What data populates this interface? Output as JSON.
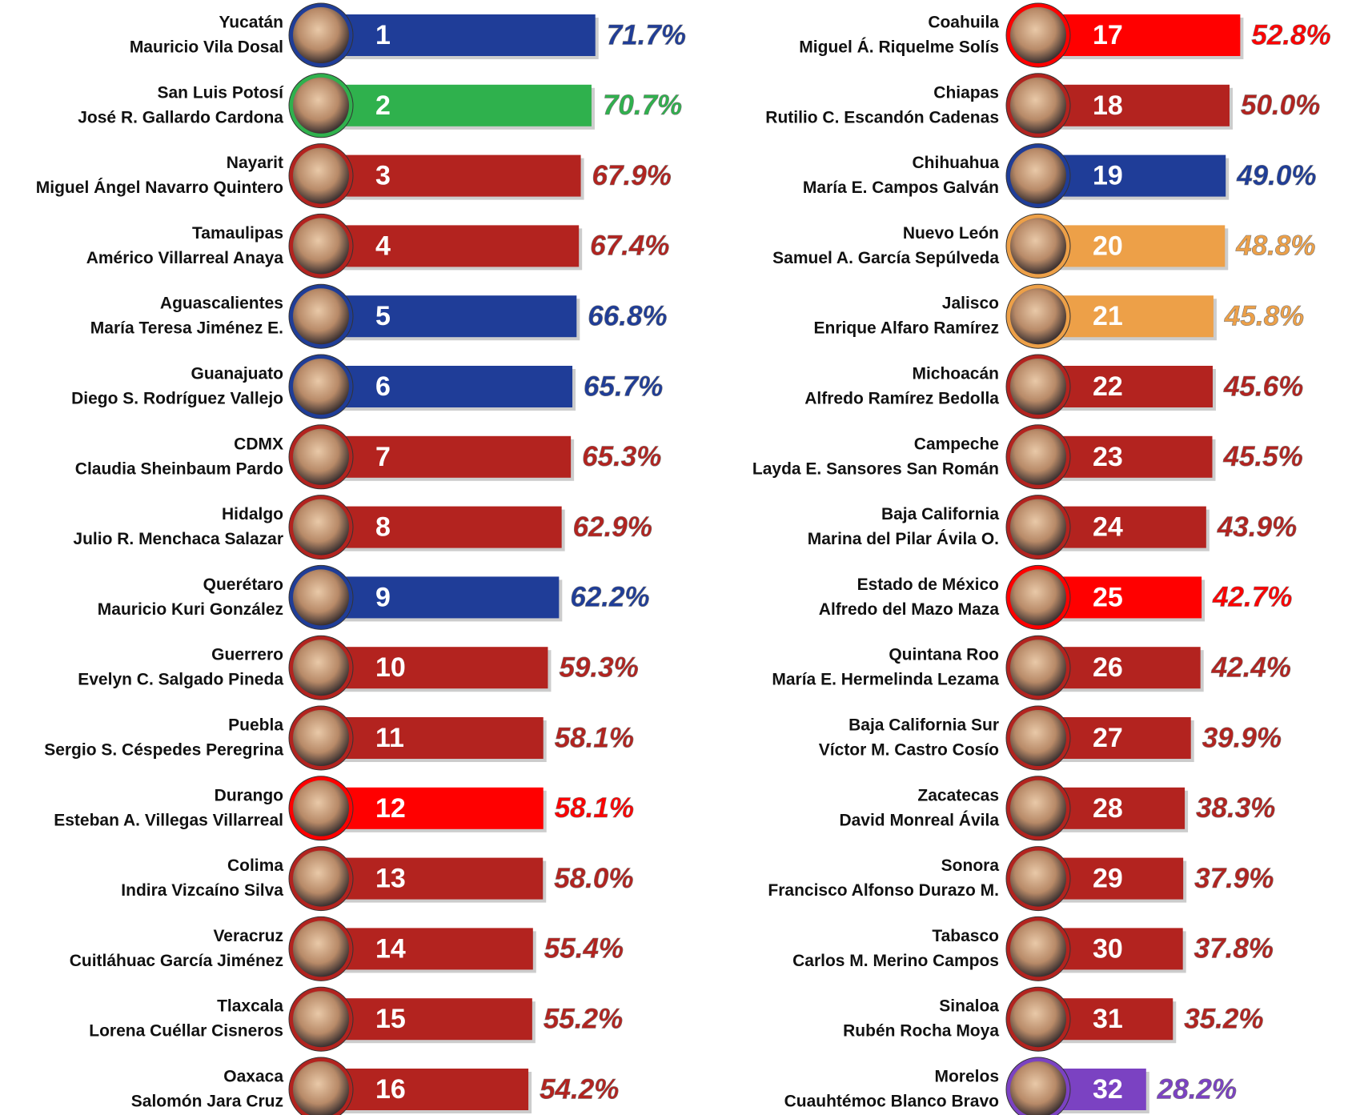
{
  "chart_data": {
    "type": "bar",
    "categories": [
      "Yucatán",
      "San Luis Potosí",
      "Nayarit",
      "Tamaulipas",
      "Aguascalientes",
      "Guanajuato",
      "CDMX",
      "Hidalgo",
      "Querétaro",
      "Guerrero",
      "Puebla",
      "Durango",
      "Colima",
      "Veracruz",
      "Tlaxcala",
      "Oaxaca",
      "Coahuila",
      "Chiapas",
      "Chihuahua",
      "Nuevo León",
      "Jalisco",
      "Michoacán",
      "Campeche",
      "Baja California",
      "Estado de México",
      "Quintana Roo",
      "Baja California Sur",
      "Zacatecas",
      "Sonora",
      "Tabasco",
      "Sinaloa",
      "Morelos"
    ],
    "governors": [
      "Mauricio Vila Dosal",
      "José R. Gallardo Cardona",
      "Miguel Ángel Navarro Quintero",
      "Américo Villarreal Anaya",
      "María Teresa Jiménez E.",
      "Diego S. Rodríguez Vallejo",
      "Claudia Sheinbaum Pardo",
      "Julio R. Menchaca Salazar",
      "Mauricio Kuri González",
      "Evelyn C. Salgado Pineda",
      "Sergio S. Céspedes Peregrina",
      "Esteban A. Villegas Villarreal",
      "Indira Vizcaíno Silva",
      "Cuitláhuac García Jiménez",
      "Lorena Cuéllar Cisneros",
      "Salomón Jara Cruz",
      "Miguel Á. Riquelme Solís",
      "Rutilio C. Escandón Cadenas",
      "María E. Campos Galván",
      "Samuel A. García Sepúlveda",
      "Enrique Alfaro Ramírez",
      "Alfredo Ramírez Bedolla",
      "Layda E. Sansores San Román",
      "Marina del Pilar Ávila O.",
      "Alfredo del Mazo Maza",
      "María E. Hermelinda Lezama",
      "Víctor M. Castro Cosío",
      "David Monreal Ávila",
      "Francisco Alfonso Durazo M.",
      "Carlos M. Merino Campos",
      "Rubén Rocha Moya",
      "Cuauhtémoc Blanco Bravo"
    ],
    "ranks": [
      1,
      2,
      3,
      4,
      5,
      6,
      7,
      8,
      9,
      10,
      11,
      12,
      13,
      14,
      15,
      16,
      17,
      18,
      19,
      20,
      21,
      22,
      23,
      24,
      25,
      26,
      27,
      28,
      29,
      30,
      31,
      32
    ],
    "values": [
      71.7,
      70.7,
      67.9,
      67.4,
      66.8,
      65.7,
      65.3,
      62.9,
      62.2,
      59.3,
      58.1,
      58.1,
      58.0,
      55.4,
      55.2,
      54.2,
      52.8,
      50.0,
      49.0,
      48.8,
      45.8,
      45.6,
      45.5,
      43.9,
      42.7,
      42.4,
      39.9,
      38.3,
      37.9,
      37.8,
      35.2,
      28.2
    ],
    "value_labels": [
      "71.7%",
      "70.7%",
      "67.9%",
      "67.4%",
      "66.8%",
      "65.7%",
      "65.3%",
      "62.9%",
      "62.2%",
      "59.3%",
      "58.1%",
      "58.1%",
      "58.0%",
      "55.4%",
      "55.2%",
      "54.2%",
      "52.8%",
      "50.0%",
      "49.0%",
      "48.8%",
      "45.8%",
      "45.6%",
      "45.5%",
      "43.9%",
      "42.7%",
      "42.4%",
      "39.9%",
      "38.3%",
      "37.9%",
      "37.8%",
      "35.2%",
      "28.2%"
    ],
    "colors": [
      "#1f3d98",
      "#2fb14d",
      "#b3231f",
      "#b3231f",
      "#1f3d98",
      "#1f3d98",
      "#b3231f",
      "#b3231f",
      "#1f3d98",
      "#b3231f",
      "#b3231f",
      "#ff0000",
      "#b3231f",
      "#b3231f",
      "#b3231f",
      "#b3231f",
      "#ff0000",
      "#b3231f",
      "#1f3d98",
      "#eda048",
      "#eda048",
      "#b3231f",
      "#b3231f",
      "#b3231f",
      "#ff0000",
      "#b3231f",
      "#b3231f",
      "#b3231f",
      "#b3231f",
      "#b3231f",
      "#b3231f",
      "#7b42c2"
    ]
  }
}
